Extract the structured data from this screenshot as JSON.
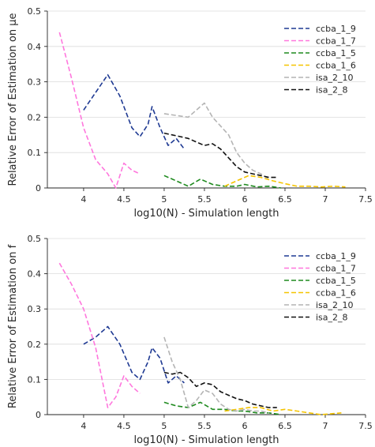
{
  "chart_data": [
    {
      "type": "line",
      "xlabel": "log10(N) - Simulation length",
      "ylabel": "Relative Error of Estimation on μe",
      "xlim": [
        3.55,
        7.5
      ],
      "ylim": [
        0,
        0.5
      ],
      "xticks": [
        "4",
        "4.5",
        "5",
        "5.5",
        "6",
        "6.5",
        "7",
        "7.5"
      ],
      "yticks": [
        "0",
        "0.1",
        "0.2",
        "0.3",
        "0.4",
        "0.5"
      ],
      "grid": "horizontal",
      "legend_position": "top-right",
      "series": [
        {
          "name": "ccba_1_9",
          "color": "#1f3a93",
          "x": [
            4.0,
            4.15,
            4.3,
            4.45,
            4.6,
            4.7,
            4.8,
            4.85,
            4.95,
            5.05,
            5.15,
            5.25
          ],
          "y": [
            0.22,
            0.27,
            0.32,
            0.26,
            0.17,
            0.145,
            0.18,
            0.23,
            0.17,
            0.12,
            0.14,
            0.11
          ]
        },
        {
          "name": "ccba_1_7",
          "color": "#ff77dd",
          "x": [
            3.7,
            3.85,
            4.0,
            4.15,
            4.3,
            4.4,
            4.5,
            4.6,
            4.7
          ],
          "y": [
            0.44,
            0.31,
            0.17,
            0.08,
            0.04,
            0.0,
            0.07,
            0.05,
            0.04
          ]
        },
        {
          "name": "ccba_1_5",
          "color": "#1e8a1e",
          "x": [
            5.0,
            5.15,
            5.3,
            5.45,
            5.6,
            5.75,
            5.9,
            6.0,
            6.15,
            6.3,
            6.45
          ],
          "y": [
            0.035,
            0.02,
            0.005,
            0.025,
            0.01,
            0.005,
            0.005,
            0.01,
            0.003,
            0.005,
            0.0
          ]
        },
        {
          "name": "ccba_1_6",
          "color": "#f5c400",
          "x": [
            5.75,
            5.9,
            6.05,
            6.2,
            6.35,
            6.5,
            6.65,
            6.8,
            6.95,
            7.1,
            7.25
          ],
          "y": [
            0.005,
            0.02,
            0.035,
            0.03,
            0.02,
            0.012,
            0.005,
            0.005,
            0.003,
            0.005,
            0.003
          ]
        },
        {
          "name": "isa_2_10",
          "color": "#b4b4b4",
          "x": [
            5.0,
            5.15,
            5.3,
            5.4,
            5.5,
            5.6,
            5.7,
            5.8,
            5.9,
            6.0,
            6.1,
            6.2,
            6.3
          ],
          "y": [
            0.21,
            0.205,
            0.2,
            0.22,
            0.24,
            0.2,
            0.175,
            0.15,
            0.1,
            0.07,
            0.05,
            0.04,
            0.025
          ]
        },
        {
          "name": "isa_2_8",
          "color": "#111111",
          "x": [
            5.0,
            5.1,
            5.2,
            5.3,
            5.4,
            5.5,
            5.6,
            5.7,
            5.8,
            5.9,
            6.0,
            6.1,
            6.2,
            6.3,
            6.4
          ],
          "y": [
            0.155,
            0.15,
            0.145,
            0.14,
            0.13,
            0.12,
            0.125,
            0.11,
            0.085,
            0.06,
            0.045,
            0.04,
            0.035,
            0.03,
            0.03
          ]
        }
      ]
    },
    {
      "type": "line",
      "xlabel": "log10(N) - Simulation length",
      "ylabel": "Relative Error of Estimation on f",
      "xlim": [
        3.55,
        7.5
      ],
      "ylim": [
        0,
        0.5
      ],
      "xticks": [
        "4",
        "4.5",
        "5",
        "5.5",
        "6",
        "6.5",
        "7",
        "7.5"
      ],
      "yticks": [
        "0",
        "0.1",
        "0.2",
        "0.3",
        "0.4",
        "0.5"
      ],
      "grid": "horizontal",
      "legend_position": "top-right",
      "series": [
        {
          "name": "ccba_1_9",
          "color": "#1f3a93",
          "x": [
            4.0,
            4.15,
            4.3,
            4.45,
            4.6,
            4.7,
            4.8,
            4.85,
            4.95,
            5.05,
            5.15,
            5.25
          ],
          "y": [
            0.2,
            0.22,
            0.25,
            0.2,
            0.12,
            0.1,
            0.15,
            0.19,
            0.16,
            0.09,
            0.11,
            0.09
          ]
        },
        {
          "name": "ccba_1_7",
          "color": "#ff77dd",
          "x": [
            3.7,
            3.85,
            4.0,
            4.15,
            4.3,
            4.4,
            4.5,
            4.6,
            4.7
          ],
          "y": [
            0.43,
            0.37,
            0.3,
            0.19,
            0.02,
            0.05,
            0.11,
            0.08,
            0.06
          ]
        },
        {
          "name": "ccba_1_5",
          "color": "#1e8a1e",
          "x": [
            5.0,
            5.15,
            5.3,
            5.45,
            5.6,
            5.75,
            5.9,
            6.0,
            6.15,
            6.3,
            6.45
          ],
          "y": [
            0.035,
            0.025,
            0.02,
            0.035,
            0.015,
            0.015,
            0.01,
            0.01,
            0.005,
            0.005,
            0.0
          ]
        },
        {
          "name": "ccba_1_6",
          "color": "#f5c400",
          "x": [
            5.75,
            5.9,
            6.05,
            6.2,
            6.35,
            6.5,
            6.65,
            6.8,
            6.95,
            7.1,
            7.2
          ],
          "y": [
            0.01,
            0.015,
            0.02,
            0.02,
            0.01,
            0.015,
            0.01,
            0.005,
            0.0,
            0.003,
            0.005
          ]
        },
        {
          "name": "isa_2_10",
          "color": "#b4b4b4",
          "x": [
            5.0,
            5.1,
            5.2,
            5.3,
            5.4,
            5.5,
            5.6,
            5.7,
            5.8,
            5.9,
            6.0,
            6.1,
            6.2,
            6.3
          ],
          "y": [
            0.22,
            0.15,
            0.1,
            0.02,
            0.04,
            0.07,
            0.06,
            0.03,
            0.015,
            0.01,
            0.015,
            0.01,
            0.01,
            0.005
          ]
        },
        {
          "name": "isa_2_8",
          "color": "#111111",
          "x": [
            5.0,
            5.1,
            5.2,
            5.3,
            5.4,
            5.5,
            5.6,
            5.7,
            5.8,
            5.9,
            6.0,
            6.1,
            6.2,
            6.3,
            6.4
          ],
          "y": [
            0.12,
            0.115,
            0.12,
            0.105,
            0.08,
            0.09,
            0.085,
            0.065,
            0.055,
            0.045,
            0.04,
            0.03,
            0.025,
            0.02,
            0.02
          ]
        }
      ]
    }
  ]
}
